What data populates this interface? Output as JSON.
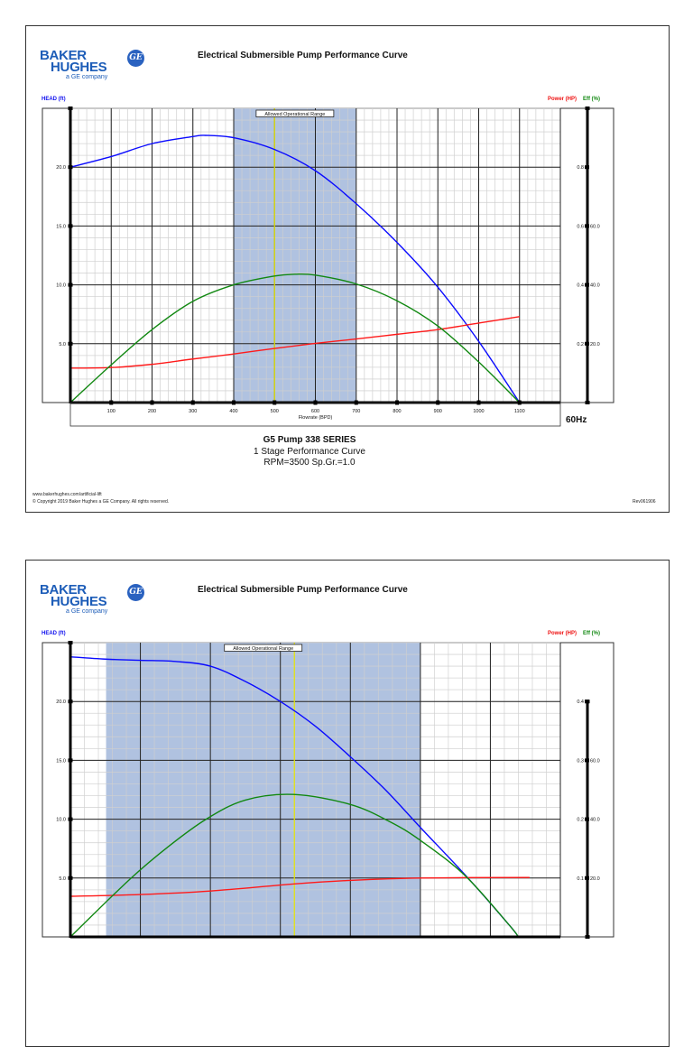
{
  "pages": [
    {
      "logo": {
        "line1": "BAKER",
        "line2": "HUGHES",
        "line3": "a GE company",
        "monogram": "GE",
        "color": "#1d5db8"
      },
      "title": "Electrical Submersible Pump Performance Curve",
      "head_axis_label": "HEAD (ft)",
      "power_axis_label": "Power (HP)",
      "eff_axis_label": "Eff (%)",
      "frequency": "60Hz",
      "pump_name": "G5 Pump 338 SERIES",
      "curve_desc": "1 Stage Performance Curve",
      "conditions": "RPM=3500 Sp.Gr.=1.0",
      "footer_url": "www.bakerhughes.com/artificial-lift",
      "footer_copyright": "© Copyright 2019 Baker Hughes a GE Company. All rights reserved.",
      "revision": "Rev061906"
    },
    {
      "logo": {
        "line1": "BAKER",
        "line2": "HUGHES",
        "line3": "a GE company",
        "monogram": "GE",
        "color": "#1d5db8"
      },
      "title": "Electrical Submersible Pump Performance Curve",
      "head_axis_label": "HEAD (ft)",
      "power_axis_label": "Power (HP)",
      "eff_axis_label": "Eff (%)"
    }
  ],
  "chart_data": [
    {
      "type": "line",
      "xlabel": "Flowrate (BPD)",
      "xlim": [
        0,
        1200
      ],
      "x_major_step": 100,
      "x_minor_step": 20,
      "x_ticks": [
        100,
        200,
        300,
        400,
        500,
        600,
        700,
        800,
        900,
        1000,
        1100
      ],
      "x_tick_labels": [
        "100",
        "200",
        "300",
        "400",
        "500",
        "600",
        "700",
        "800",
        "900",
        "1000",
        "1100"
      ],
      "ylabel": "HEAD (ft)",
      "ylim": [
        0,
        25
      ],
      "y_major_step": 5,
      "y_minor_step": 1,
      "y_ticks": [
        5,
        10,
        15,
        20
      ],
      "y_tick_labels": [
        "5.0",
        "10.0",
        "15.0",
        "20.0"
      ],
      "power_axis": {
        "label": "Power (HP)",
        "lim": [
          0,
          1.0
        ],
        "ticks": [
          0.2,
          0.4,
          0.6,
          0.8
        ],
        "tick_labels": [
          "0.2",
          "0.4",
          "0.6",
          "0.8"
        ],
        "axis_top": 1.0
      },
      "eff_axis": {
        "label": "Eff (%)",
        "lim": [
          0,
          100
        ],
        "ticks": [
          20,
          40,
          60
        ],
        "tick_labels": [
          "20.0",
          "40.0",
          "60.0"
        ]
      },
      "grid": true,
      "allowed_operational_range": {
        "label": "Allowed Operational Range",
        "min": 400,
        "max": 700,
        "color": "#b0c2e0"
      },
      "bep_line": {
        "x": 500,
        "color": "#e6e600"
      },
      "series": [
        {
          "key": "head",
          "axis": "head",
          "color": "#0a0aff",
          "x": [
            0,
            100,
            200,
            300,
            330,
            400,
            500,
            600,
            700,
            800,
            900,
            1000,
            1100
          ],
          "y": [
            20.0,
            20.9,
            22.0,
            22.6,
            22.7,
            22.5,
            21.5,
            19.7,
            16.9,
            13.6,
            9.8,
            5.2,
            0
          ]
        },
        {
          "key": "power",
          "axis": "power",
          "color": "#ff1a1a",
          "x": [
            0,
            100,
            200,
            300,
            400,
            500,
            600,
            700,
            800,
            900,
            1000,
            1100
          ],
          "y": [
            0.117,
            0.119,
            0.13,
            0.148,
            0.165,
            0.184,
            0.201,
            0.216,
            0.232,
            0.248,
            0.27,
            0.292
          ]
        },
        {
          "key": "efficiency",
          "axis": "eff",
          "color": "#118811",
          "x": [
            0,
            100,
            200,
            300,
            400,
            500,
            550,
            600,
            700,
            800,
            900,
            1000,
            1100
          ],
          "y": [
            0,
            12.8,
            24.8,
            34.4,
            40.0,
            43.0,
            43.6,
            43.3,
            40.3,
            34.6,
            26.0,
            13.8,
            0
          ]
        }
      ]
    },
    {
      "type": "line",
      "xlabel": "",
      "xlim": [
        0,
        7
      ],
      "x_major_step": 1,
      "x_minor_step": 0.2,
      "x_ticks": [],
      "x_tick_labels": [],
      "ylabel": "HEAD (ft)",
      "ylim": [
        0,
        25
      ],
      "y_major_step": 5,
      "y_minor_step": 1,
      "y_ticks": [
        5,
        10,
        15,
        20
      ],
      "y_tick_labels": [
        "5.0",
        "10.0",
        "15.0",
        "20.0"
      ],
      "power_axis": {
        "label": "Power (HP)",
        "lim": [
          0,
          0.5
        ],
        "ticks": [
          0.1,
          0.2,
          0.3,
          0.4
        ],
        "tick_labels": [
          "0.1",
          "0.2",
          "0.3",
          "0.4"
        ],
        "axis_top": 0.4
      },
      "eff_axis": {
        "label": "Eff (%)",
        "lim": [
          0,
          100
        ],
        "ticks": [
          20,
          40,
          60
        ],
        "tick_labels": [
          "20.0",
          "40.0",
          "60.0"
        ]
      },
      "grid": true,
      "allowed_operational_range": {
        "label": "Allowed Operational Range",
        "min": 0.51,
        "max": 5.0,
        "color": "#b0c2e0"
      },
      "bep_line": {
        "x": 3.2,
        "color": "#e6e600"
      },
      "series": [
        {
          "key": "head",
          "axis": "head",
          "color": "#0a0aff",
          "x": [
            0,
            0.5,
            1,
            1.5,
            2,
            2.5,
            3,
            3.5,
            4,
            4.5,
            5,
            5.65,
            6.27,
            6.4
          ],
          "y": [
            23.8,
            23.6,
            23.5,
            23.4,
            23.0,
            21.7,
            20.0,
            17.9,
            15.3,
            12.5,
            9.3,
            5.2,
            1.0,
            0
          ]
        },
        {
          "key": "power",
          "axis": "power",
          "color": "#ff1a1a",
          "x": [
            0,
            1,
            2,
            3.2,
            4,
            5,
            6.56
          ],
          "y": [
            0.069,
            0.072,
            0.078,
            0.09,
            0.096,
            0.1,
            0.101
          ]
        },
        {
          "key": "efficiency",
          "axis": "eff",
          "color": "#118811",
          "x": [
            0,
            0.85,
            1.4,
            1.94,
            2.5,
            3.19,
            4,
            4.56,
            5,
            5.64,
            6.27,
            6.4
          ],
          "y": [
            0,
            19.6,
            30.7,
            40.0,
            46.5,
            48.4,
            45.0,
            39.2,
            32.8,
            20.8,
            4.0,
            0
          ]
        }
      ]
    }
  ]
}
